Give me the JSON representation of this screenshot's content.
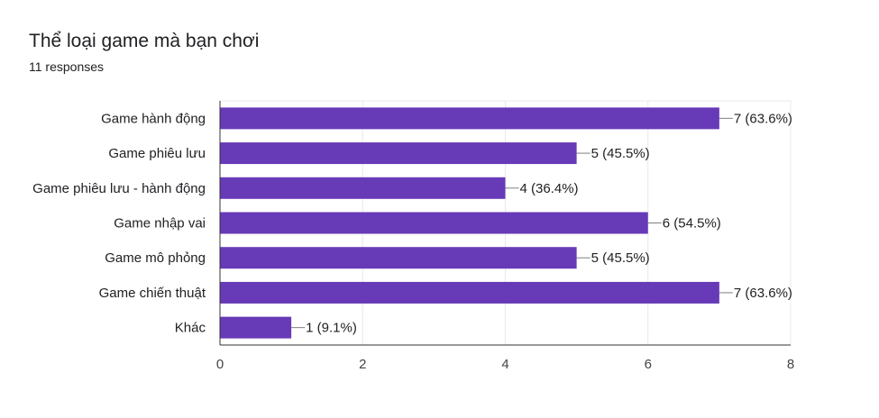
{
  "header": {
    "title": "Thể loại game mà bạn chơi",
    "subtitle": "11 responses"
  },
  "colors": {
    "bar": "#673ab7",
    "grid": "#e8e8e8",
    "axis": "#333333",
    "leader": "#7f7f7f"
  },
  "chart_data": {
    "type": "bar",
    "orientation": "horizontal",
    "title": "Thể loại game mà bạn chơi",
    "subtitle": "11 responses",
    "categories": [
      "Game hành động",
      "Game phiêu lưu",
      "Game phiêu lưu - hành động",
      "Game nhập vai",
      "Game mô phỏng",
      "Game chiến thuật",
      "Khác"
    ],
    "values": [
      7,
      5,
      4,
      6,
      5,
      7,
      1
    ],
    "data_labels": [
      "7 (63.6%)",
      "5 (45.5%)",
      "4 (36.4%)",
      "6 (54.5%)",
      "5 (45.5%)",
      "7 (63.6%)",
      "1 (9.1%)"
    ],
    "xlim": [
      0,
      8
    ],
    "xticks": [
      0,
      2,
      4,
      6,
      8
    ],
    "grid": true,
    "legend": "none"
  }
}
